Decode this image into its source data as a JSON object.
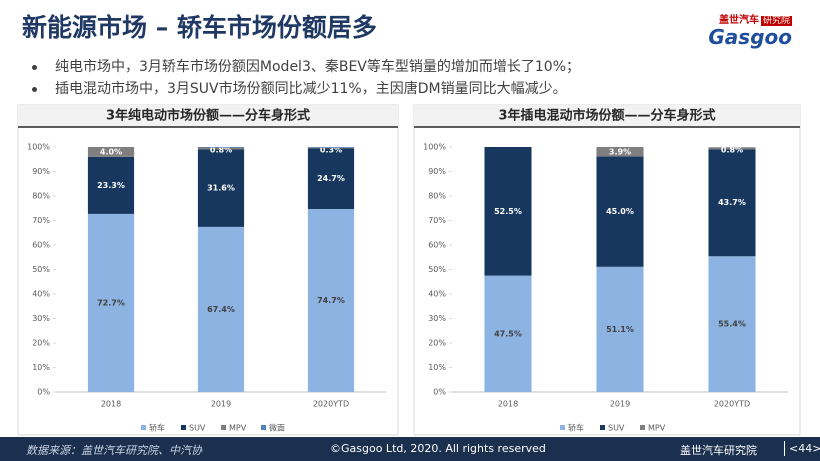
{
  "header": {
    "title": "新能源市场 – 轿车市场份额居多",
    "logo_cn": "盖世汽车",
    "logo_tag": "研究院",
    "logo_en": "Gasgoo"
  },
  "bullets": [
    "纯电市场中，3月轿车市场份额因Model3、秦BEV等车型销量的增加而增长了10%；",
    "插电混动市场中，3月SUV市场份额同比减少11%，主因唐DM销量同比大幅减少。"
  ],
  "chart_data": [
    {
      "type": "stacked-bar",
      "title": "3年纯电动市场份额——分车身形式",
      "categories": [
        "2018",
        "2019",
        "2020YTD"
      ],
      "series": [
        {
          "name": "轿车",
          "color": "#8db3e2",
          "values": [
            72.7,
            67.4,
            74.7
          ],
          "value_labels": [
            "72.7%",
            "67.4%",
            "74.7%"
          ]
        },
        {
          "name": "SUV",
          "color": "#17375e",
          "values": [
            23.3,
            31.6,
            24.7
          ],
          "value_labels": [
            "23.3%",
            "31.6%",
            "24.7%"
          ]
        },
        {
          "name": "MPV",
          "color": "#7f7f7f",
          "values": [
            4.0,
            0.8,
            0.3
          ],
          "value_labels": [
            "4.0%",
            "0.8%",
            "0.3%"
          ]
        },
        {
          "name": "微面",
          "color": "#4f81bd",
          "values": [
            0,
            0.2,
            0.3
          ]
        }
      ],
      "ylim": [
        0,
        100
      ],
      "yticks": [
        {
          "value": 0,
          "label": "0%"
        },
        {
          "value": 10,
          "label": "10%"
        },
        {
          "value": 20,
          "label": "20%"
        },
        {
          "value": 30,
          "label": "30%"
        },
        {
          "value": 40,
          "label": "40%"
        },
        {
          "value": 50,
          "label": "50%"
        },
        {
          "value": 60,
          "label": "60%"
        },
        {
          "value": 70,
          "label": "70%"
        },
        {
          "value": 80,
          "label": "80%"
        },
        {
          "value": 90,
          "label": "90%"
        },
        {
          "value": 100,
          "label": "100%"
        }
      ],
      "legend": "bottom"
    },
    {
      "type": "stacked-bar",
      "title": "3年插电混动市场份额——分车身形式",
      "categories": [
        "2018",
        "2019",
        "2020YTD"
      ],
      "series": [
        {
          "name": "轿车",
          "color": "#8db3e2",
          "values": [
            47.5,
            51.1,
            55.4
          ],
          "value_labels": [
            "47.5%",
            "51.1%",
            "55.4%"
          ]
        },
        {
          "name": "SUV",
          "color": "#17375e",
          "values": [
            52.5,
            45.0,
            43.7
          ],
          "value_labels": [
            "52.5%",
            "45.0%",
            "43.7%"
          ]
        },
        {
          "name": "MPV",
          "color": "#7f7f7f",
          "values": [
            0,
            3.9,
            0.8
          ],
          "value_labels": [
            null,
            "3.9%",
            "0.8%"
          ]
        }
      ],
      "ylim": [
        0,
        100
      ],
      "yticks": [
        {
          "value": 0,
          "label": "0%"
        },
        {
          "value": 10,
          "label": "10%"
        },
        {
          "value": 20,
          "label": "20%"
        },
        {
          "value": 30,
          "label": "30%"
        },
        {
          "value": 40,
          "label": "40%"
        },
        {
          "value": 50,
          "label": "50%"
        },
        {
          "value": 60,
          "label": "60%"
        },
        {
          "value": 70,
          "label": "70%"
        },
        {
          "value": 80,
          "label": "80%"
        },
        {
          "value": 90,
          "label": "90%"
        },
        {
          "value": 100,
          "label": "100%"
        }
      ],
      "legend": "bottom"
    }
  ],
  "footer": {
    "source": "数据来源：盖世汽车研究院、中汽协",
    "copyright": "©Gasgoo Ltd, 2020. All rights reserved",
    "org": "盖世汽车研究院",
    "page": "<44>"
  }
}
